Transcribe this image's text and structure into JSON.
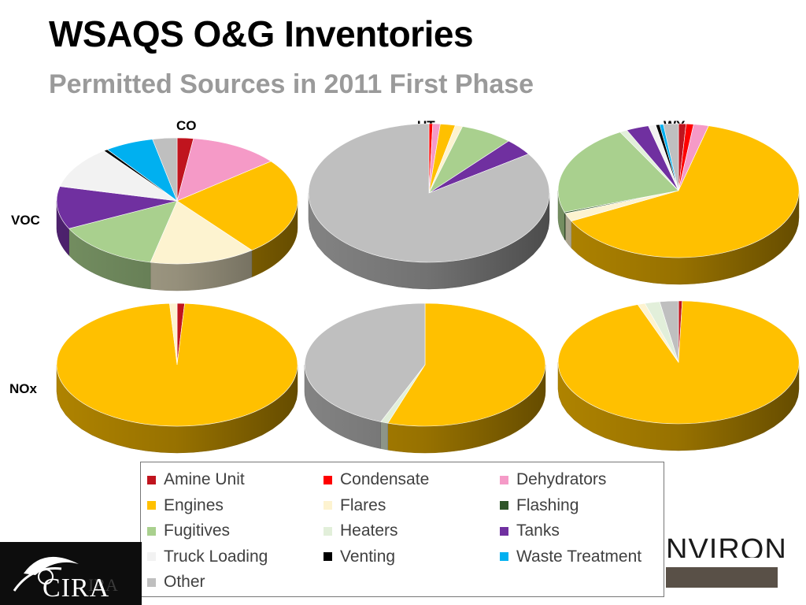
{
  "header": {
    "title": "WSAQS O&G Inventories",
    "subtitle": "Permitted Sources in 2011 First Phase"
  },
  "columns": [
    "CO",
    "UT",
    "WY"
  ],
  "rows": [
    "VOC",
    "NOx"
  ],
  "categories": [
    "Amine Unit",
    "Condensate",
    "Dehydrators",
    "Engines",
    "Flares",
    "Flashing",
    "Fugitives",
    "Heaters",
    "Tanks",
    "Truck Loading",
    "Venting",
    "Waste Treatment",
    "Other"
  ],
  "colors": [
    "#c0141e",
    "#ff0000",
    "#f59ac7",
    "#ffc000",
    "#fdf3d0",
    "#2e5528",
    "#a9d08e",
    "#e2efda",
    "#7030a0",
    "#f2f2f2",
    "#000000",
    "#00b0f0",
    "#bfbfbf"
  ],
  "chart_data": [
    {
      "type": "pie",
      "row": "VOC",
      "column": "CO",
      "values": [
        0.02,
        0,
        0.11,
        0.23,
        0.13,
        0,
        0.13,
        0,
        0.1,
        0.1,
        0.005,
        0.06,
        0.03
      ]
    },
    {
      "type": "pie",
      "row": "VOC",
      "column": "UT",
      "values": [
        0,
        0.005,
        0.01,
        0.02,
        0.01,
        0,
        0.07,
        0,
        0.04,
        0,
        0,
        0,
        0.845
      ]
    },
    {
      "type": "pie",
      "row": "VOC",
      "column": "WY",
      "values": [
        0.01,
        0.01,
        0.02,
        0.63,
        0.02,
        0.003,
        0.22,
        0.01,
        0.03,
        0.01,
        0.005,
        0.005,
        0.02
      ]
    },
    {
      "type": "pie",
      "row": "NOx",
      "column": "CO",
      "values": [
        0.01,
        0,
        0,
        0.98,
        0.01,
        0,
        0,
        0,
        0,
        0,
        0,
        0,
        0
      ]
    },
    {
      "type": "pie",
      "row": "NOx",
      "column": "UT",
      "values": [
        0,
        0,
        0,
        0.55,
        0,
        0,
        0,
        0.01,
        0,
        0,
        0,
        0,
        0.44
      ]
    },
    {
      "type": "pie",
      "row": "NOx",
      "column": "WY",
      "values": [
        0.005,
        0,
        0,
        0.94,
        0.01,
        0,
        0,
        0.02,
        0,
        0,
        0,
        0,
        0.025
      ]
    }
  ]
}
